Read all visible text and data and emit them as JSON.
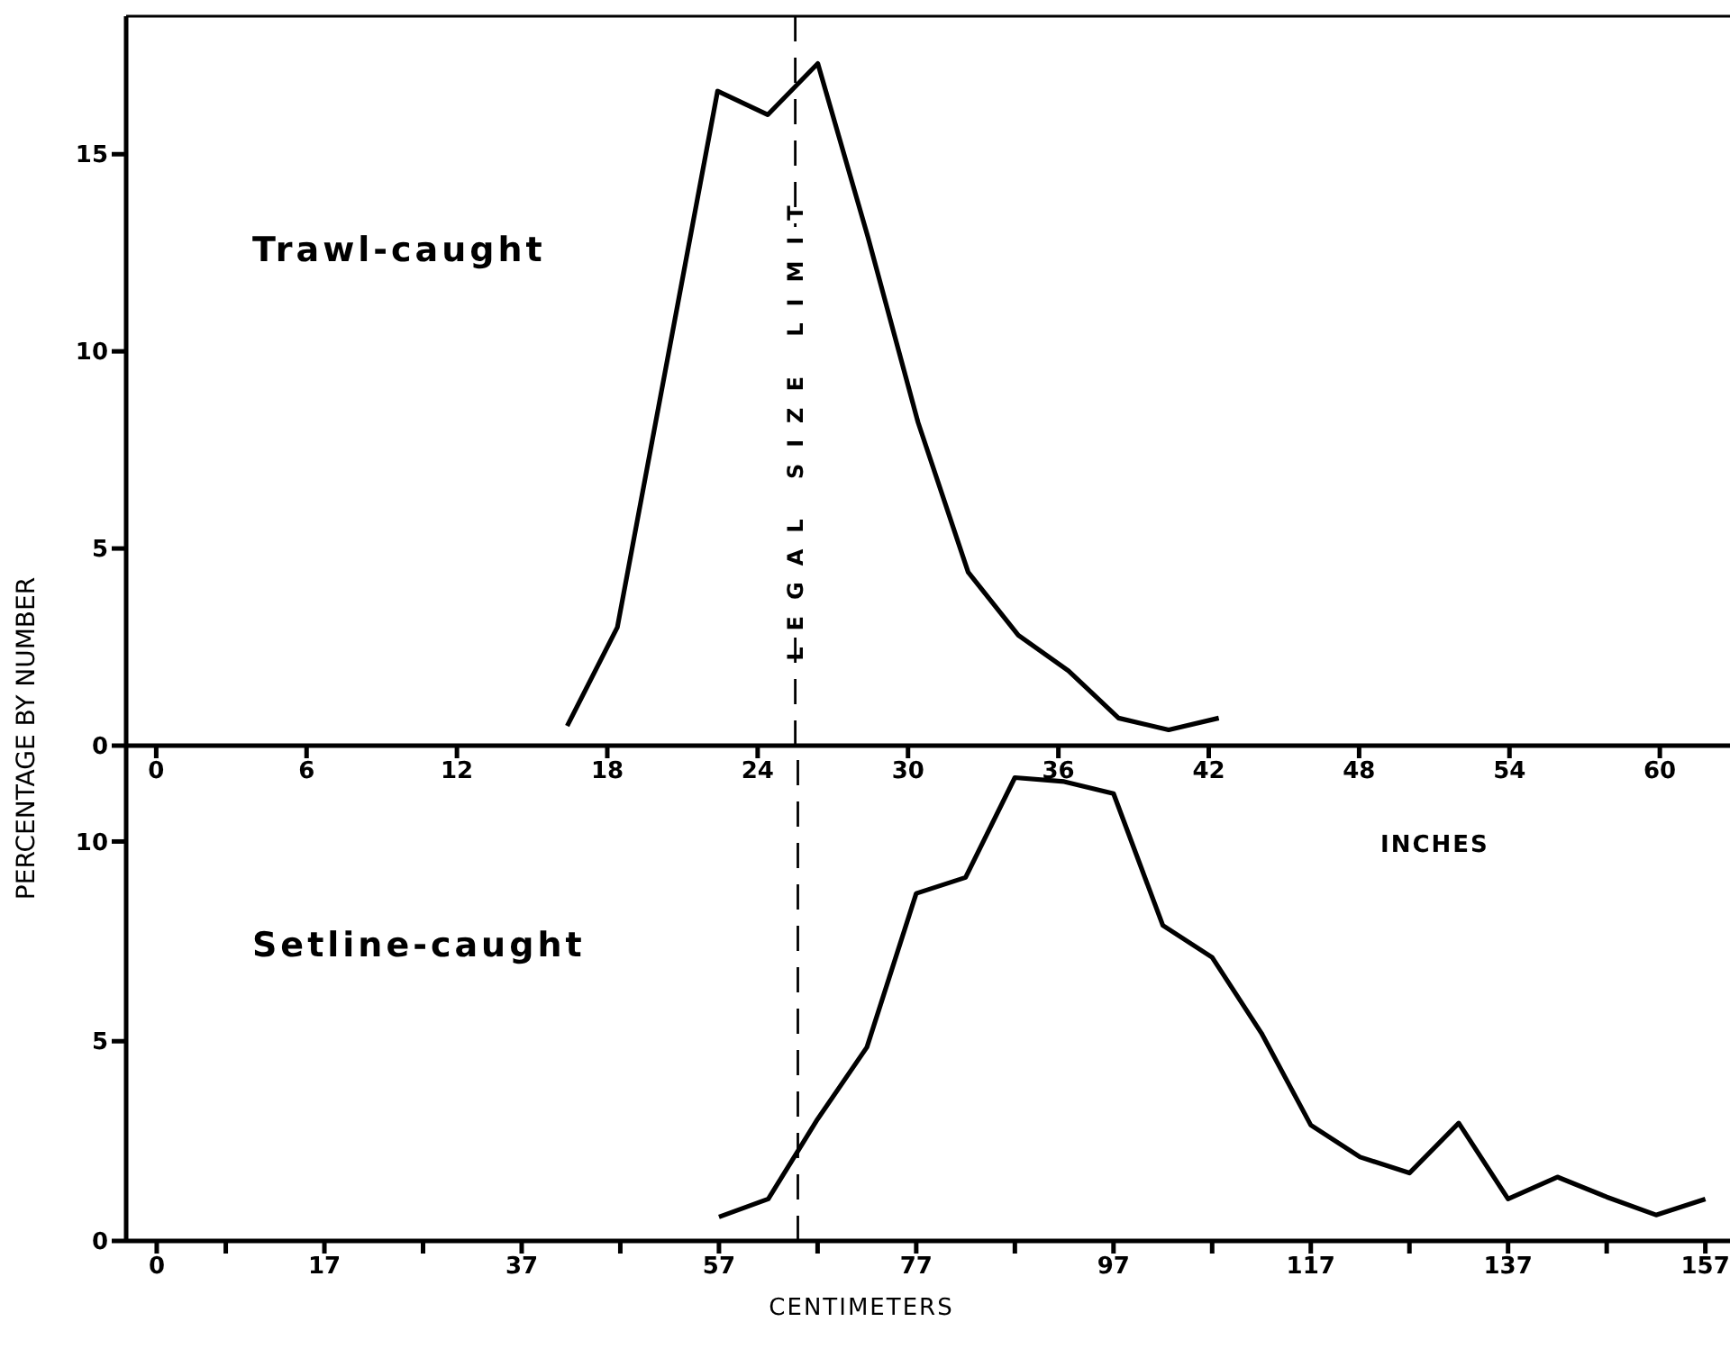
{
  "chart_data": [
    {
      "type": "line",
      "title": "Trawl-caught",
      "xlabel": "INCHES",
      "ylabel": "PERCENTAGE BY NUMBER",
      "x": [
        16.4,
        18.4,
        20.4,
        22.4,
        24.4,
        26.4,
        28.4,
        30.4,
        32.4,
        34.4,
        36.4,
        38.4,
        40.4,
        42.4
      ],
      "series": [
        {
          "color": "#000000",
          "values": [
            0.5,
            3.0,
            9.8,
            16.6,
            16.0,
            17.3,
            12.9,
            8.2,
            4.4,
            2.8,
            1.9,
            0.7,
            0.4,
            0.7
          ]
        }
      ],
      "xlim": [
        -1.2,
        62.8
      ],
      "xticks": [
        0,
        6,
        12,
        18,
        24,
        30,
        36,
        42,
        48,
        54,
        60
      ],
      "ylim": [
        0,
        18.5
      ],
      "yticks": [
        0,
        5,
        10,
        15
      ],
      "ref_lines": [
        {
          "axis": "x",
          "value": 25.5,
          "label": "LEGAL SIZE LIMIT",
          "line_style": "dashed"
        }
      ],
      "line_style": "solid"
    },
    {
      "type": "line",
      "title": "Setline-caught",
      "xlabel": "CENTIMETERS",
      "x": [
        57,
        62,
        67,
        72,
        77,
        82,
        87,
        92,
        97,
        102,
        107,
        112,
        117,
        122,
        127,
        132,
        137,
        142,
        147,
        152,
        157
      ],
      "series": [
        {
          "color": "#000000",
          "values": [
            0.6,
            1.05,
            3.05,
            4.85,
            8.7,
            9.1,
            11.6,
            11.5,
            11.2,
            7.9,
            7.1,
            5.2,
            2.9,
            2.1,
            1.7,
            2.95,
            1.05,
            1.6,
            1.1,
            0.65,
            1.05
          ]
        }
      ],
      "xlim": [
        -3.1,
        159.5
      ],
      "xticks": [
        0,
        {
          "value": 7,
          "label": null
        },
        17,
        {
          "value": 27,
          "label": null
        },
        37,
        {
          "value": 47,
          "label": null
        },
        57,
        {
          "value": 67,
          "label": null
        },
        77,
        {
          "value": 87,
          "label": null
        },
        97,
        {
          "value": 107,
          "label": null
        },
        117,
        {
          "value": 127,
          "label": null
        },
        137,
        {
          "value": 147,
          "label": null
        },
        157
      ],
      "ylim": [
        0,
        12.4
      ],
      "yticks": [
        0,
        5,
        10
      ],
      "ref_lines": [
        {
          "axis": "x",
          "value": 65,
          "line_style": "dashed"
        }
      ],
      "line_style": "solid"
    }
  ]
}
